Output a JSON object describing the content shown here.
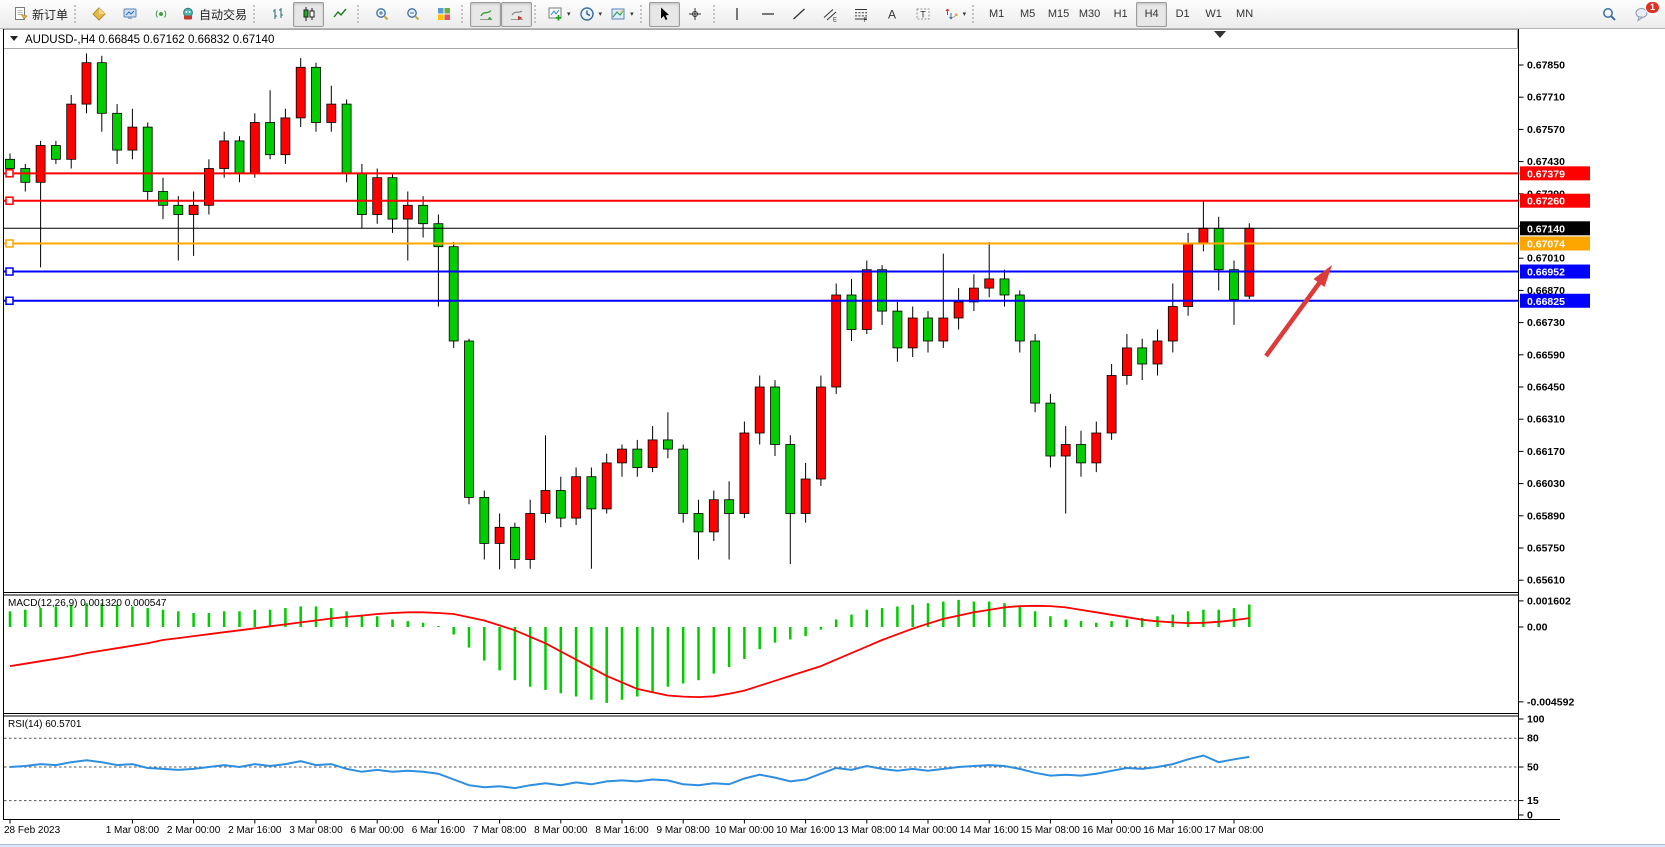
{
  "toolbar": {
    "groups": [
      {
        "name": "orders-group",
        "items": [
          {
            "name": "new-order-button",
            "icon": "new-order-icon",
            "label": "新订单"
          }
        ]
      },
      {
        "name": "services-group",
        "items": [
          {
            "name": "market-watch-button",
            "icon": "gold-diamond-icon"
          },
          {
            "name": "strategy-tester-button",
            "icon": "monitor-icon"
          },
          {
            "name": "signals-button",
            "icon": "broadcast-icon"
          },
          {
            "name": "autotrading-button",
            "icon": "robot-icon",
            "label": "自动交易"
          }
        ]
      },
      {
        "name": "chart-type-group",
        "items": [
          {
            "name": "bar-chart-button",
            "icon": "ohlc-bars-icon"
          },
          {
            "name": "candlestick-chart-button",
            "icon": "candlestick-icon",
            "pressed": true
          },
          {
            "name": "line-chart-button",
            "icon": "line-chart-icon"
          }
        ]
      },
      {
        "name": "zoom-group",
        "items": [
          {
            "name": "zoom-in-button",
            "icon": "zoom-in-icon"
          },
          {
            "name": "zoom-out-button",
            "icon": "zoom-out-icon"
          },
          {
            "name": "tile-windows-button",
            "icon": "tile-windows-icon"
          }
        ]
      },
      {
        "name": "scroll-group",
        "items": [
          {
            "name": "auto-scroll-button",
            "icon": "auto-scroll-icon",
            "pressed": true
          },
          {
            "name": "chart-shift-button",
            "icon": "chart-shift-icon",
            "pressed": true
          }
        ]
      },
      {
        "name": "objects-group",
        "items": [
          {
            "name": "indicators-button",
            "icon": "indicators-icon",
            "dropdown": true
          },
          {
            "name": "periods-button",
            "icon": "clock-icon",
            "dropdown": true
          },
          {
            "name": "templates-button",
            "icon": "template-icon",
            "dropdown": true
          }
        ]
      },
      {
        "name": "cursor-group",
        "items": [
          {
            "name": "cursor-button",
            "icon": "cursor-icon",
            "pressed": true
          },
          {
            "name": "crosshair-button",
            "icon": "crosshair-icon"
          }
        ]
      },
      {
        "name": "drawing-group",
        "items": [
          {
            "name": "vertical-line-button",
            "icon": "vline-icon"
          },
          {
            "name": "horizontal-line-button",
            "icon": "hline-icon"
          },
          {
            "name": "trendline-button",
            "icon": "trendline-icon"
          },
          {
            "name": "equidistant-channel-button",
            "icon": "channel-icon"
          },
          {
            "name": "fibonacci-button",
            "icon": "fibonacci-icon"
          },
          {
            "name": "text-button",
            "icon": "text-icon"
          },
          {
            "name": "text-label-button",
            "icon": "label-icon"
          },
          {
            "name": "arrows-button",
            "icon": "arrows-icon",
            "dropdown": true
          }
        ]
      },
      {
        "name": "timeframes-group",
        "items": [
          {
            "name": "tf-m1-button",
            "label": "M1",
            "tf": true
          },
          {
            "name": "tf-m5-button",
            "label": "M5",
            "tf": true
          },
          {
            "name": "tf-m15-button",
            "label": "M15",
            "tf": true
          },
          {
            "name": "tf-m30-button",
            "label": "M30",
            "tf": true
          },
          {
            "name": "tf-h1-button",
            "label": "H1",
            "tf": true
          },
          {
            "name": "tf-h4-button",
            "label": "H4",
            "tf": true,
            "pressed": true
          },
          {
            "name": "tf-d1-button",
            "label": "D1",
            "tf": true
          },
          {
            "name": "tf-w1-button",
            "label": "W1",
            "tf": true
          },
          {
            "name": "tf-mn-button",
            "label": "MN",
            "tf": true
          }
        ]
      }
    ],
    "right": [
      {
        "name": "search-button",
        "icon": "search-icon"
      },
      {
        "name": "notifications-button",
        "icon": "chat-icon",
        "badge": "1"
      }
    ]
  },
  "chart_window": {
    "title": {
      "symbol": "AUDUSD-,H4",
      "open": "0.66845",
      "high": "0.67162",
      "low": "0.66832",
      "close": "0.67140"
    }
  },
  "chart_data": {
    "type": "candlestick+macd+rsi",
    "symbol": "AUDUSD",
    "timeframe": "H4",
    "colors": {
      "bull": "#ff0000",
      "bear": "#00cc00",
      "wick": "#000000",
      "macd_hist": "#00cc00",
      "macd_signal": "#ff0000",
      "rsi_line": "#2e8ee0",
      "arrow": "#dd3a3a"
    },
    "price_axis_ticks": [
      "0.67850",
      "0.67710",
      "0.67570",
      "0.67430",
      "0.67290",
      "0.67150",
      "0.67010",
      "0.66870",
      "0.66730",
      "0.66590",
      "0.66450",
      "0.66310",
      "0.66170",
      "0.66030",
      "0.65890",
      "0.65750",
      "0.65610"
    ],
    "price_axis_tick_values": [
      0.6785,
      0.6771,
      0.6757,
      0.6743,
      0.6729,
      0.6715,
      0.6701,
      0.6687,
      0.6673,
      0.6659,
      0.6645,
      0.6631,
      0.6617,
      0.6603,
      0.6589,
      0.6575,
      0.6561
    ],
    "hlines": [
      {
        "name": "resistance-line-1",
        "price": 0.67379,
        "label": "0.67379",
        "color": "#ff0000",
        "width": 2,
        "anchor": true
      },
      {
        "name": "resistance-line-2",
        "price": 0.6726,
        "label": "0.67260",
        "color": "#ff0000",
        "width": 2,
        "anchor": true
      },
      {
        "name": "current-price-line",
        "price": 0.6714,
        "label": "0.67140",
        "color": "#000000",
        "width": 1,
        "anchor": false
      },
      {
        "name": "pivot-line",
        "price": 0.67074,
        "label": "0.67074",
        "color": "#ffa500",
        "width": 2,
        "anchor": true
      },
      {
        "name": "support-line-1",
        "price": 0.66952,
        "label": "0.66952",
        "color": "#0000ff",
        "width": 2,
        "anchor": true
      },
      {
        "name": "support-line-2",
        "price": 0.66825,
        "label": "0.66825",
        "color": "#0000ff",
        "width": 2,
        "anchor": true
      }
    ],
    "candles": [
      [
        0.6744,
        0.67465,
        0.6738,
        0.674
      ],
      [
        0.674,
        0.6742,
        0.673,
        0.6734
      ],
      [
        0.6734,
        0.6752,
        0.6697,
        0.675
      ],
      [
        0.675,
        0.6752,
        0.6742,
        0.6744
      ],
      [
        0.6744,
        0.6772,
        0.674,
        0.6768
      ],
      [
        0.6768,
        0.679,
        0.6764,
        0.6786
      ],
      [
        0.6786,
        0.6789,
        0.6756,
        0.6764
      ],
      [
        0.6764,
        0.6768,
        0.6742,
        0.6748
      ],
      [
        0.6748,
        0.6766,
        0.6744,
        0.6758
      ],
      [
        0.6758,
        0.676,
        0.6726,
        0.673
      ],
      [
        0.673,
        0.6736,
        0.6718,
        0.6724
      ],
      [
        0.6724,
        0.6728,
        0.67,
        0.672
      ],
      [
        0.672,
        0.673,
        0.6702,
        0.6724
      ],
      [
        0.6724,
        0.6744,
        0.672,
        0.674
      ],
      [
        0.674,
        0.6756,
        0.6736,
        0.6752
      ],
      [
        0.6752,
        0.6754,
        0.6734,
        0.6738
      ],
      [
        0.6738,
        0.6764,
        0.6736,
        0.676
      ],
      [
        0.676,
        0.6774,
        0.6744,
        0.6746
      ],
      [
        0.6746,
        0.6766,
        0.6742,
        0.6762
      ],
      [
        0.6762,
        0.6788,
        0.6758,
        0.6784
      ],
      [
        0.6784,
        0.6786,
        0.6756,
        0.676
      ],
      [
        0.676,
        0.6776,
        0.6756,
        0.6768
      ],
      [
        0.6768,
        0.677,
        0.6734,
        0.6738
      ],
      [
        0.6738,
        0.6742,
        0.6714,
        0.672
      ],
      [
        0.672,
        0.674,
        0.6716,
        0.6736
      ],
      [
        0.6736,
        0.6738,
        0.6712,
        0.6718
      ],
      [
        0.6718,
        0.673,
        0.67,
        0.6724
      ],
      [
        0.6724,
        0.6728,
        0.671,
        0.6716
      ],
      [
        0.6716,
        0.672,
        0.668,
        0.6706
      ],
      [
        0.6706,
        0.6708,
        0.6662,
        0.6665
      ],
      [
        0.6665,
        0.6666,
        0.6594,
        0.6597
      ],
      [
        0.6597,
        0.66,
        0.657,
        0.6577
      ],
      [
        0.6577,
        0.659,
        0.65657,
        0.6584
      ],
      [
        0.6584,
        0.6586,
        0.6566,
        0.657
      ],
      [
        0.657,
        0.6596,
        0.6566,
        0.659
      ],
      [
        0.659,
        0.6624,
        0.6586,
        0.66
      ],
      [
        0.66,
        0.6606,
        0.6584,
        0.6588
      ],
      [
        0.6588,
        0.661,
        0.6585,
        0.6606
      ],
      [
        0.6606,
        0.661,
        0.6566,
        0.6592
      ],
      [
        0.6592,
        0.6616,
        0.659,
        0.6612
      ],
      [
        0.6612,
        0.662,
        0.6606,
        0.6618
      ],
      [
        0.6618,
        0.6622,
        0.6606,
        0.661
      ],
      [
        0.661,
        0.6628,
        0.6608,
        0.6622
      ],
      [
        0.6622,
        0.6634,
        0.6614,
        0.6618
      ],
      [
        0.6618,
        0.662,
        0.6586,
        0.659
      ],
      [
        0.659,
        0.6596,
        0.657,
        0.6582
      ],
      [
        0.6582,
        0.66,
        0.6578,
        0.6596
      ],
      [
        0.6596,
        0.6604,
        0.657,
        0.659
      ],
      [
        0.659,
        0.663,
        0.6588,
        0.6625
      ],
      [
        0.6625,
        0.665,
        0.662,
        0.6645
      ],
      [
        0.6645,
        0.6648,
        0.6615,
        0.662
      ],
      [
        0.662,
        0.6624,
        0.6568,
        0.659
      ],
      [
        0.659,
        0.6612,
        0.6586,
        0.6605
      ],
      [
        0.6605,
        0.665,
        0.6602,
        0.6645
      ],
      [
        0.6645,
        0.669,
        0.6642,
        0.6685
      ],
      [
        0.6685,
        0.6692,
        0.6665,
        0.667
      ],
      [
        0.667,
        0.67,
        0.6668,
        0.6696
      ],
      [
        0.6696,
        0.6698,
        0.6672,
        0.6678
      ],
      [
        0.6678,
        0.6682,
        0.6656,
        0.6662
      ],
      [
        0.6662,
        0.668,
        0.6658,
        0.6675
      ],
      [
        0.6675,
        0.6678,
        0.666,
        0.6665
      ],
      [
        0.6665,
        0.6703,
        0.6662,
        0.6675
      ],
      [
        0.6675,
        0.6688,
        0.667,
        0.6682
      ],
      [
        0.6682,
        0.6694,
        0.6678,
        0.6688
      ],
      [
        0.6688,
        0.6708,
        0.6684,
        0.6692
      ],
      [
        0.6692,
        0.6696,
        0.668,
        0.6685
      ],
      [
        0.6685,
        0.6687,
        0.666,
        0.6665
      ],
      [
        0.6665,
        0.6668,
        0.6634,
        0.6638
      ],
      [
        0.6638,
        0.6642,
        0.661,
        0.6615
      ],
      [
        0.6615,
        0.6628,
        0.659,
        0.662
      ],
      [
        0.662,
        0.6626,
        0.6606,
        0.6612
      ],
      [
        0.6612,
        0.663,
        0.6608,
        0.6625
      ],
      [
        0.6625,
        0.6655,
        0.6622,
        0.665
      ],
      [
        0.665,
        0.6668,
        0.6646,
        0.6662
      ],
      [
        0.6662,
        0.6666,
        0.6648,
        0.6655
      ],
      [
        0.6655,
        0.667,
        0.665,
        0.6665
      ],
      [
        0.6665,
        0.669,
        0.666,
        0.668
      ],
      [
        0.668,
        0.6712,
        0.6676,
        0.67074
      ],
      [
        0.67074,
        0.67262,
        0.6704,
        0.6714
      ],
      [
        0.6714,
        0.6719,
        0.6687,
        0.6696
      ],
      [
        0.6696,
        0.67,
        0.6672,
        0.6683
      ],
      [
        0.66845,
        0.67162,
        0.66832,
        0.6714
      ]
    ],
    "macd": {
      "label": "MACD(12,26,9)",
      "values_text": "0.001320 0.000547",
      "axis_labels": [
        "0.001602",
        "0.00",
        "-0.004592"
      ],
      "axis_values": [
        0.001602,
        0,
        -0.004592
      ],
      "histogram": [
        0.0009,
        0.001,
        0.0011,
        0.0012,
        0.0013,
        0.0014,
        0.0014,
        0.0013,
        0.0012,
        0.0011,
        0.001,
        0.0009,
        0.0008,
        0.0008,
        0.0009,
        0.0009,
        0.001,
        0.001,
        0.0011,
        0.0012,
        0.0012,
        0.0011,
        0.0009,
        0.0007,
        0.0006,
        0.0004,
        0.0003,
        0.0002,
        0.0,
        -0.0004,
        -0.0012,
        -0.002,
        -0.0026,
        -0.0032,
        -0.0036,
        -0.0038,
        -0.004,
        -0.0042,
        -0.0044,
        -0.004592,
        -0.0044,
        -0.0042,
        -0.0039,
        -0.0036,
        -0.0034,
        -0.0032,
        -0.0028,
        -0.0024,
        -0.0019,
        -0.0013,
        -0.0009,
        -0.0007,
        -0.0005,
        -0.0001,
        0.0004,
        0.0007,
        0.001,
        0.0011,
        0.0012,
        0.0013,
        0.0014,
        0.0015,
        0.001602,
        0.0015,
        0.0015,
        0.0014,
        0.0012,
        0.0009,
        0.0006,
        0.0004,
        0.0003,
        0.0002,
        0.0003,
        0.0004,
        0.0005,
        0.0006,
        0.0007,
        0.0009,
        0.001,
        0.001,
        0.0011,
        0.00132
      ],
      "signal": [
        -0.0024,
        -0.00225,
        -0.0021,
        -0.00195,
        -0.0018,
        -0.0016,
        -0.00145,
        -0.0013,
        -0.00115,
        -0.001,
        -0.0008,
        -0.00068,
        -0.00056,
        -0.00044,
        -0.00032,
        -0.0002,
        -8e-05,
        4e-05,
        0.00016,
        0.00028,
        0.0004,
        0.00052,
        0.00062,
        0.0007,
        0.0008,
        0.00086,
        0.0009,
        0.0009,
        0.00086,
        0.0008,
        0.0006,
        0.0004,
        0.0001,
        -0.0002,
        -0.0006,
        -0.001,
        -0.0015,
        -0.002,
        -0.0025,
        -0.003,
        -0.0034,
        -0.0038,
        -0.004,
        -0.0042,
        -0.00427,
        -0.0043,
        -0.00425,
        -0.0041,
        -0.0039,
        -0.0036,
        -0.0033,
        -0.003,
        -0.0027,
        -0.0024,
        -0.002,
        -0.0016,
        -0.0012,
        -0.0008,
        -0.00045,
        -0.0001,
        0.0002,
        0.0005,
        0.0007,
        0.0009,
        0.00105,
        0.0012,
        0.00128,
        0.0013,
        0.00128,
        0.0012,
        0.00105,
        0.0009,
        0.00075,
        0.0006,
        0.00045,
        0.00035,
        0.00028,
        0.00024,
        0.00026,
        0.00032,
        0.00042,
        0.000547
      ]
    },
    "rsi": {
      "label": "RSI(14)",
      "value_text": "60.5701",
      "axis_labels": [
        "100",
        "80",
        "50",
        "15",
        "0"
      ],
      "axis_values": [
        100,
        80,
        50,
        15,
        0
      ],
      "dashed_levels": [
        80,
        50,
        15
      ],
      "series": [
        50,
        51,
        53,
        52,
        55,
        57,
        55,
        52,
        53,
        49,
        48,
        47,
        48,
        50,
        52,
        50,
        53,
        51,
        53,
        56,
        52,
        53,
        48,
        45,
        47,
        45,
        46,
        45,
        43,
        37,
        31,
        29,
        30,
        28,
        31,
        33,
        31,
        34,
        32,
        35,
        36,
        35,
        37,
        36,
        32,
        31,
        33,
        32,
        38,
        42,
        39,
        35,
        37,
        43,
        49,
        47,
        51,
        48,
        46,
        48,
        46,
        48,
        50,
        51,
        52,
        51,
        48,
        44,
        41,
        42,
        41,
        43,
        46,
        49,
        48,
        50,
        53,
        58,
        62,
        55,
        58,
        60.57
      ]
    },
    "time_labels": [
      {
        "text": "28 Feb 2023",
        "bar": 0
      },
      {
        "text": "1 Mar 08:00",
        "bar": 8
      },
      {
        "text": "2 Mar 00:00",
        "bar": 12
      },
      {
        "text": "2 Mar 16:00",
        "bar": 16
      },
      {
        "text": "3 Mar 08:00",
        "bar": 20
      },
      {
        "text": "6 Mar 00:00",
        "bar": 24
      },
      {
        "text": "6 Mar 16:00",
        "bar": 28
      },
      {
        "text": "7 Mar 08:00",
        "bar": 32
      },
      {
        "text": "8 Mar 00:00",
        "bar": 36
      },
      {
        "text": "8 Mar 16:00",
        "bar": 40
      },
      {
        "text": "9 Mar 08:00",
        "bar": 44
      },
      {
        "text": "10 Mar 00:00",
        "bar": 48
      },
      {
        "text": "10 Mar 16:00",
        "bar": 52
      },
      {
        "text": "13 Mar 08:00",
        "bar": 56
      },
      {
        "text": "14 Mar 00:00",
        "bar": 60
      },
      {
        "text": "14 Mar 16:00",
        "bar": 64
      },
      {
        "text": "15 Mar 08:00",
        "bar": 68
      },
      {
        "text": "16 Mar 00:00",
        "bar": 72
      },
      {
        "text": "16 Mar 16:00",
        "bar": 76
      },
      {
        "text": "17 Mar 08:00",
        "bar": 80
      }
    ],
    "arrow_annotation": {
      "from": [
        1266,
        357
      ],
      "to": [
        1332,
        266
      ],
      "color": "#dd3a3a"
    }
  }
}
